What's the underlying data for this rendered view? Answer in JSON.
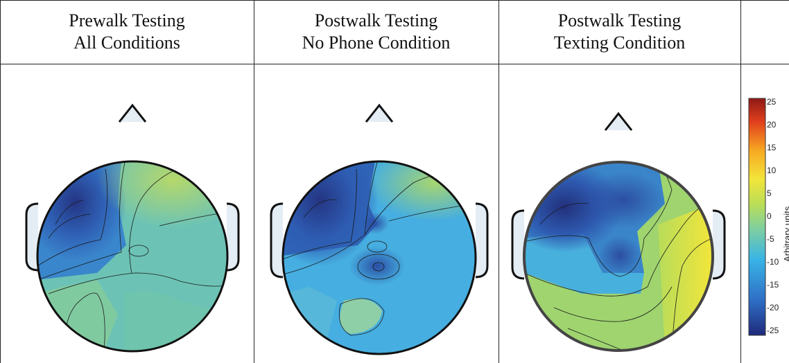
{
  "panels": [
    {
      "title_line1": "Prewalk Testing",
      "title_line2": "All Conditions",
      "level_pattern": "prewalk"
    },
    {
      "title_line1": "Postwalk Testing",
      "title_line2": "No Phone Condition",
      "level_pattern": "postwalk-nophone"
    },
    {
      "title_line1": "Postwalk Testing",
      "title_line2": "Texting Condition",
      "level_pattern": "postwalk-texting"
    }
  ],
  "colorbar": {
    "ticks": [
      "25",
      "20",
      "15",
      "10",
      "5",
      "0",
      "-5",
      "-10",
      "-15",
      "-20",
      "-25"
    ],
    "label": "Arbitrary units",
    "range": [
      -25,
      25
    ],
    "colors": [
      "#1f2a7a",
      "#2f6fc6",
      "#39b4e6",
      "#7fcf9f",
      "#b8dd58",
      "#f2e53a",
      "#f7a822",
      "#e2401d",
      "#8e1a15"
    ]
  }
}
